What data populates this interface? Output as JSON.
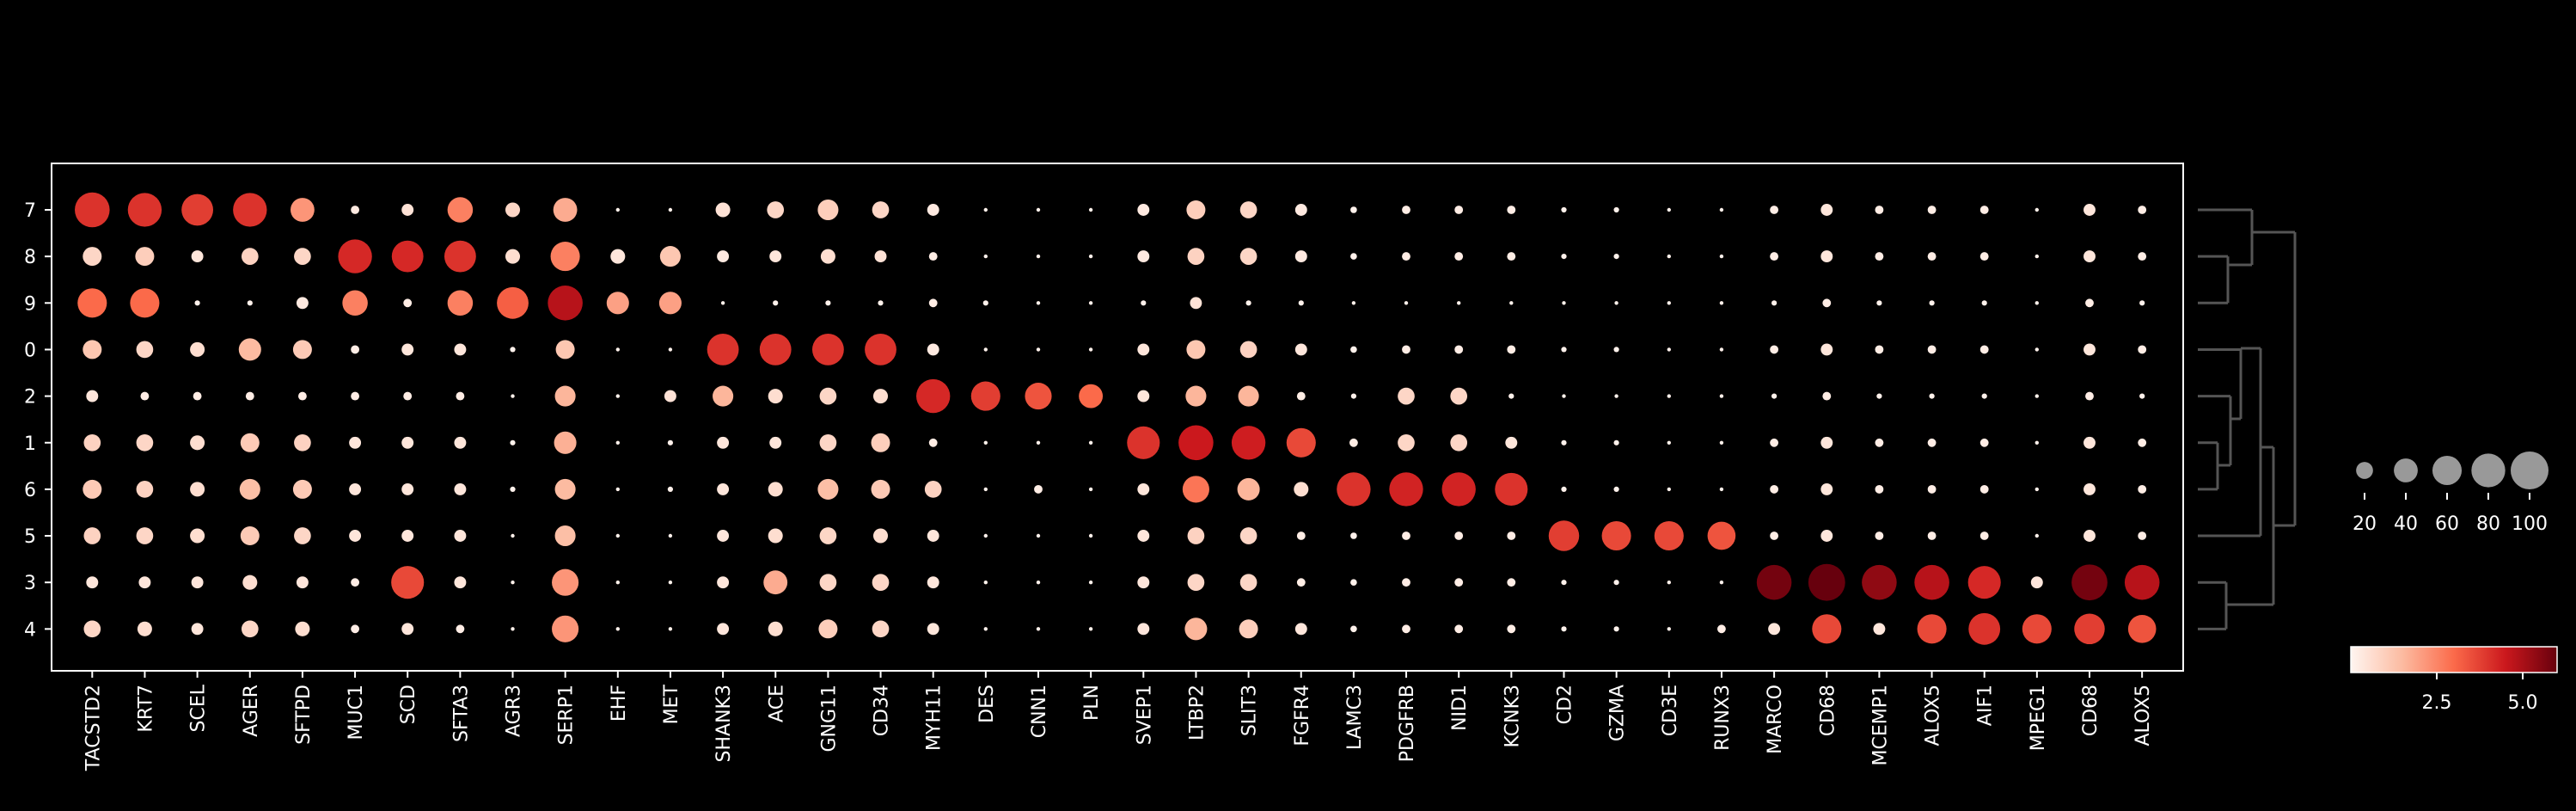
{
  "chart_data": {
    "type": "dotplot",
    "title": "",
    "xlabel": "",
    "ylabel": "",
    "genes": [
      "TACSTD2",
      "KRT7",
      "SCEL",
      "AGER",
      "SFTPD",
      "MUC1",
      "SCD",
      "SFTA3",
      "AGR3",
      "SERP1",
      "EHF",
      "MET",
      "SHANK3",
      "ACE",
      "GNG11",
      "CD34",
      "MYH11",
      "DES",
      "CNN1",
      "PLN",
      "SVEP1",
      "LTBP2",
      "SLIT3",
      "FGFR4",
      "LAMC3",
      "PDGFRB",
      "NID1",
      "KCNK3",
      "CD2",
      "GZMA",
      "CD3E",
      "RUNX3",
      "MARCO",
      "CD68",
      "MCEMP1",
      "ALOX5",
      "AIF1",
      "MPEG1",
      "CD68",
      "ALOX5"
    ],
    "clusters": [
      "7",
      "8",
      "9",
      "0",
      "2",
      "1",
      "6",
      "5",
      "3",
      "4"
    ],
    "fraction_expressing": [
      [
        85,
        80,
        70,
        80,
        40,
        5,
        10,
        45,
        15,
        40,
        1,
        1,
        15,
        20,
        30,
        20,
        10,
        1,
        1,
        1,
        10,
        25,
        20,
        10,
        3,
        5,
        5,
        5,
        2,
        2,
        1,
        1,
        5,
        10,
        5,
        5,
        5,
        1,
        10,
        5
      ],
      [
        25,
        25,
        10,
        20,
        20,
        80,
        70,
        70,
        15,
        60,
        15,
        30,
        10,
        10,
        15,
        10,
        5,
        1,
        1,
        1,
        10,
        20,
        20,
        10,
        3,
        5,
        5,
        5,
        2,
        2,
        1,
        1,
        5,
        10,
        5,
        5,
        5,
        1,
        10,
        5
      ],
      [
        60,
        60,
        2,
        2,
        10,
        45,
        5,
        45,
        70,
        85,
        35,
        35,
        1,
        2,
        2,
        2,
        5,
        2,
        1,
        1,
        2,
        10,
        2,
        2,
        1,
        1,
        1,
        1,
        1,
        1,
        1,
        1,
        2,
        5,
        2,
        2,
        2,
        1,
        5,
        2
      ],
      [
        25,
        20,
        15,
        35,
        25,
        5,
        10,
        10,
        2,
        25,
        1,
        1,
        70,
        70,
        70,
        70,
        10,
        1,
        1,
        1,
        10,
        25,
        20,
        10,
        3,
        5,
        5,
        5,
        2,
        2,
        1,
        1,
        5,
        10,
        5,
        5,
        5,
        1,
        10,
        5
      ],
      [
        10,
        5,
        5,
        5,
        5,
        5,
        5,
        5,
        1,
        30,
        1,
        10,
        30,
        15,
        20,
        15,
        80,
        60,
        50,
        40,
        10,
        30,
        30,
        5,
        2,
        20,
        20,
        2,
        1,
        1,
        1,
        1,
        2,
        5,
        2,
        2,
        2,
        1,
        5,
        2
      ],
      [
        20,
        20,
        15,
        25,
        20,
        10,
        10,
        10,
        2,
        35,
        1,
        2,
        10,
        10,
        20,
        25,
        5,
        1,
        1,
        1,
        75,
        85,
        80,
        60,
        5,
        20,
        20,
        10,
        2,
        2,
        1,
        1,
        5,
        10,
        5,
        5,
        5,
        1,
        10,
        5
      ],
      [
        25,
        20,
        15,
        30,
        25,
        10,
        10,
        10,
        2,
        30,
        1,
        2,
        10,
        15,
        30,
        25,
        20,
        1,
        5,
        1,
        10,
        50,
        35,
        15,
        80,
        80,
        80,
        75,
        2,
        2,
        1,
        1,
        5,
        10,
        5,
        5,
        5,
        1,
        10,
        5
      ],
      [
        20,
        20,
        15,
        25,
        20,
        10,
        10,
        10,
        1,
        30,
        1,
        1,
        10,
        15,
        20,
        15,
        10,
        1,
        1,
        1,
        10,
        20,
        20,
        5,
        3,
        5,
        5,
        5,
        65,
        60,
        60,
        55,
        5,
        10,
        5,
        5,
        5,
        1,
        10,
        5
      ],
      [
        10,
        10,
        10,
        15,
        10,
        5,
        75,
        10,
        1,
        50,
        1,
        1,
        10,
        40,
        20,
        20,
        10,
        1,
        1,
        1,
        10,
        20,
        20,
        5,
        3,
        5,
        5,
        5,
        2,
        2,
        1,
        1,
        85,
        95,
        85,
        85,
        75,
        10,
        90,
        85
      ],
      [
        20,
        15,
        10,
        20,
        15,
        5,
        10,
        5,
        1,
        50,
        1,
        1,
        10,
        15,
        25,
        20,
        10,
        1,
        1,
        1,
        10,
        35,
        25,
        10,
        3,
        5,
        5,
        5,
        2,
        2,
        1,
        5,
        10,
        60,
        10,
        60,
        70,
        60,
        65,
        55
      ]
    ],
    "mean_expression": [
      [
        4.0,
        4.0,
        3.8,
        4.0,
        2.2,
        0.3,
        0.5,
        2.6,
        0.8,
        1.8,
        0.1,
        0.1,
        0.5,
        0.8,
        1.0,
        0.8,
        0.3,
        0.1,
        0.1,
        0.1,
        0.3,
        1.0,
        0.8,
        0.3,
        0.1,
        0.2,
        0.2,
        0.2,
        0.1,
        0.1,
        0.1,
        0.1,
        0.2,
        0.4,
        0.2,
        0.2,
        0.2,
        0.1,
        0.4,
        0.2
      ],
      [
        0.8,
        1.0,
        0.4,
        0.9,
        0.8,
        4.2,
        4.2,
        4.0,
        0.6,
        2.6,
        0.4,
        1.2,
        0.3,
        0.4,
        0.6,
        0.5,
        0.2,
        0.1,
        0.1,
        0.1,
        0.3,
        0.9,
        0.8,
        0.3,
        0.1,
        0.2,
        0.2,
        0.2,
        0.1,
        0.1,
        0.1,
        0.1,
        0.2,
        0.4,
        0.2,
        0.2,
        0.2,
        0.1,
        0.4,
        0.2
      ],
      [
        3.0,
        3.0,
        0.1,
        0.1,
        0.3,
        2.6,
        0.2,
        2.6,
        3.2,
        4.8,
        2.0,
        2.0,
        0.1,
        0.1,
        0.1,
        0.1,
        0.2,
        0.1,
        0.1,
        0.1,
        0.1,
        0.5,
        0.1,
        0.1,
        0.1,
        0.1,
        0.1,
        0.1,
        0.1,
        0.1,
        0.1,
        0.1,
        0.1,
        0.2,
        0.1,
        0.1,
        0.1,
        0.1,
        0.2,
        0.1
      ],
      [
        1.2,
        0.8,
        0.6,
        1.5,
        1.1,
        0.2,
        0.4,
        0.4,
        0.1,
        1.2,
        0.1,
        0.1,
        4.0,
        4.0,
        4.0,
        4.0,
        0.3,
        0.1,
        0.1,
        0.1,
        0.4,
        1.2,
        0.9,
        0.4,
        0.1,
        0.2,
        0.2,
        0.2,
        0.1,
        0.1,
        0.1,
        0.1,
        0.2,
        0.4,
        0.2,
        0.2,
        0.2,
        0.1,
        0.4,
        0.2
      ],
      [
        0.4,
        0.2,
        0.2,
        0.2,
        0.2,
        0.2,
        0.2,
        0.2,
        0.1,
        1.6,
        0.1,
        0.5,
        1.6,
        0.6,
        0.8,
        0.6,
        4.2,
        3.8,
        3.4,
        3.0,
        0.4,
        1.6,
        1.6,
        0.2,
        0.1,
        0.8,
        0.8,
        0.1,
        0.1,
        0.1,
        0.1,
        0.1,
        0.1,
        0.2,
        0.1,
        0.1,
        0.1,
        0.1,
        0.2,
        0.1
      ],
      [
        0.9,
        0.8,
        0.6,
        1.1,
        0.9,
        0.4,
        0.4,
        0.4,
        0.1,
        1.7,
        0.1,
        0.1,
        0.4,
        0.4,
        0.8,
        1.0,
        0.2,
        0.1,
        0.1,
        0.1,
        4.0,
        4.5,
        4.4,
        3.6,
        0.2,
        0.8,
        0.8,
        0.4,
        0.1,
        0.1,
        0.1,
        0.1,
        0.2,
        0.4,
        0.2,
        0.2,
        0.2,
        0.1,
        0.4,
        0.2
      ],
      [
        1.1,
        0.9,
        0.6,
        1.4,
        1.1,
        0.4,
        0.4,
        0.4,
        0.1,
        1.5,
        0.1,
        0.1,
        0.4,
        0.6,
        1.4,
        1.1,
        0.9,
        0.1,
        0.2,
        0.1,
        0.4,
        2.8,
        1.6,
        0.6,
        4.0,
        4.3,
        4.3,
        4.0,
        0.1,
        0.1,
        0.1,
        0.1,
        0.2,
        0.4,
        0.2,
        0.2,
        0.2,
        0.1,
        0.4,
        0.2
      ],
      [
        0.9,
        0.8,
        0.6,
        1.1,
        0.8,
        0.4,
        0.4,
        0.4,
        0.1,
        1.4,
        0.1,
        0.1,
        0.4,
        0.6,
        0.8,
        0.6,
        0.4,
        0.1,
        0.1,
        0.1,
        0.4,
        0.9,
        0.8,
        0.2,
        0.1,
        0.2,
        0.2,
        0.2,
        3.8,
        3.6,
        3.6,
        3.4,
        0.2,
        0.4,
        0.2,
        0.2,
        0.2,
        0.1,
        0.4,
        0.2
      ],
      [
        0.4,
        0.4,
        0.4,
        0.6,
        0.4,
        0.2,
        3.6,
        0.4,
        0.1,
        2.2,
        0.1,
        0.1,
        0.4,
        1.8,
        0.8,
        0.8,
        0.4,
        0.1,
        0.1,
        0.1,
        0.4,
        0.8,
        0.8,
        0.2,
        0.1,
        0.2,
        0.2,
        0.2,
        0.1,
        0.1,
        0.1,
        0.1,
        5.8,
        6.0,
        5.4,
        4.8,
        4.2,
        0.4,
        5.8,
        4.8
      ],
      [
        0.8,
        0.6,
        0.4,
        0.8,
        0.6,
        0.2,
        0.4,
        0.2,
        0.1,
        2.2,
        0.1,
        0.1,
        0.4,
        0.6,
        1.0,
        0.8,
        0.4,
        0.1,
        0.1,
        0.1,
        0.4,
        1.6,
        1.0,
        0.4,
        0.1,
        0.2,
        0.2,
        0.2,
        0.1,
        0.1,
        0.1,
        0.2,
        0.4,
        3.6,
        0.4,
        3.6,
        4.0,
        3.6,
        3.8,
        3.4
      ]
    ],
    "size_legend": {
      "values": [
        20,
        40,
        60,
        80,
        100
      ],
      "labels": [
        "20",
        "40",
        "60",
        "80",
        "100"
      ]
    },
    "color_legend": {
      "colormap": "Reds",
      "range": [
        0,
        6.0
      ],
      "ticks": [
        2.5,
        5.0
      ],
      "tick_labels": [
        "2.5",
        "5.0"
      ]
    },
    "dendrogram_groups": [
      [
        "7",
        "8",
        "9"
      ],
      [
        "0",
        "2",
        "1",
        "6",
        "5"
      ],
      [
        "3",
        "4"
      ]
    ],
    "background": "#000000",
    "axis_color": "#ffffff",
    "dendrogram_color": "#555555"
  }
}
